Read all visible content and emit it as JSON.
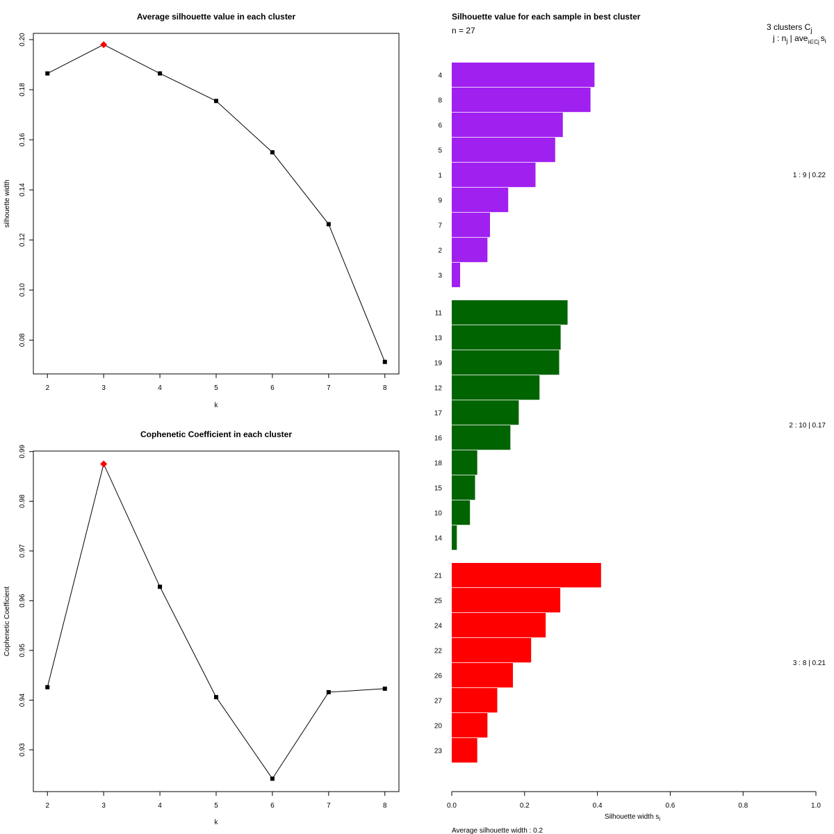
{
  "chart_data": [
    {
      "type": "line",
      "title": "Average silhouette value in each cluster",
      "xlabel": "k",
      "ylabel": "silhouette width",
      "x": [
        2,
        3,
        4,
        5,
        6,
        7,
        8
      ],
      "y": [
        0.1865,
        0.198,
        0.1865,
        0.1755,
        0.155,
        0.1263,
        0.0713
      ],
      "best_k": 3,
      "xticks": [
        2,
        3,
        4,
        5,
        6,
        7,
        8
      ],
      "yticks": [
        "0.08",
        "0.10",
        "0.12",
        "0.14",
        "0.16",
        "0.18",
        "0.20"
      ],
      "xlim": [
        1.75,
        8.25
      ],
      "ylim": [
        0.0665,
        0.2025
      ],
      "highlight_color": "#ff0000"
    },
    {
      "type": "line",
      "title": "Cophenetic Coefficient in each cluster",
      "xlabel": "k",
      "ylabel": "Cophenetic Coefficient",
      "x": [
        2,
        3,
        4,
        5,
        6,
        7,
        8
      ],
      "y": [
        0.9426,
        0.9875,
        0.9628,
        0.9406,
        0.9242,
        0.9416,
        0.9423
      ],
      "best_k": 3,
      "xticks": [
        2,
        3,
        4,
        5,
        6,
        7,
        8
      ],
      "yticks": [
        "0.93",
        "0.94",
        "0.95",
        "0.96",
        "0.97",
        "0.98",
        "0.99"
      ],
      "xlim": [
        1.75,
        8.25
      ],
      "ylim": [
        0.9216,
        0.9901
      ],
      "highlight_color": "#ff0000"
    },
    {
      "type": "bar",
      "orientation": "horizontal",
      "title": "Silhouette value for each sample in best cluster",
      "n_label": "n = 27",
      "legend_header_1": "3  clusters  C",
      "legend_header_1_sub": "j",
      "legend_header_2": "j :  n",
      "legend_header_2_sub": "j",
      "legend_header_2_mid": " | ave",
      "legend_header_2_sub2": "i∈Cj",
      "legend_header_2_end": "s",
      "legend_header_2_sub3": "i",
      "xlabel": "Silhouette width s",
      "xlabel_sub": "i",
      "xlim": [
        0,
        1
      ],
      "xticks": [
        "0.0",
        "0.2",
        "0.4",
        "0.6",
        "0.8",
        "1.0"
      ],
      "average_label": "Average silhouette width :  0.2",
      "clusters": [
        {
          "color": "#a020f0",
          "summary": "1 :   9  |  0.22",
          "labels": [
            "4",
            "8",
            "6",
            "5",
            "1",
            "9",
            "7",
            "2",
            "3"
          ],
          "values": [
            0.392,
            0.381,
            0.305,
            0.284,
            0.23,
            0.155,
            0.105,
            0.098,
            0.023
          ]
        },
        {
          "color": "#006400",
          "summary": "2 :   10  |  0.17",
          "labels": [
            "11",
            "13",
            "19",
            "12",
            "17",
            "16",
            "18",
            "15",
            "10",
            "14"
          ],
          "values": [
            0.318,
            0.299,
            0.295,
            0.241,
            0.184,
            0.161,
            0.07,
            0.064,
            0.05,
            0.014
          ]
        },
        {
          "color": "#ff0000",
          "summary": "3 :   8  |  0.21",
          "labels": [
            "21",
            "25",
            "24",
            "22",
            "26",
            "27",
            "20",
            "23"
          ],
          "values": [
            0.41,
            0.298,
            0.258,
            0.218,
            0.168,
            0.125,
            0.098,
            0.07
          ]
        }
      ]
    }
  ]
}
